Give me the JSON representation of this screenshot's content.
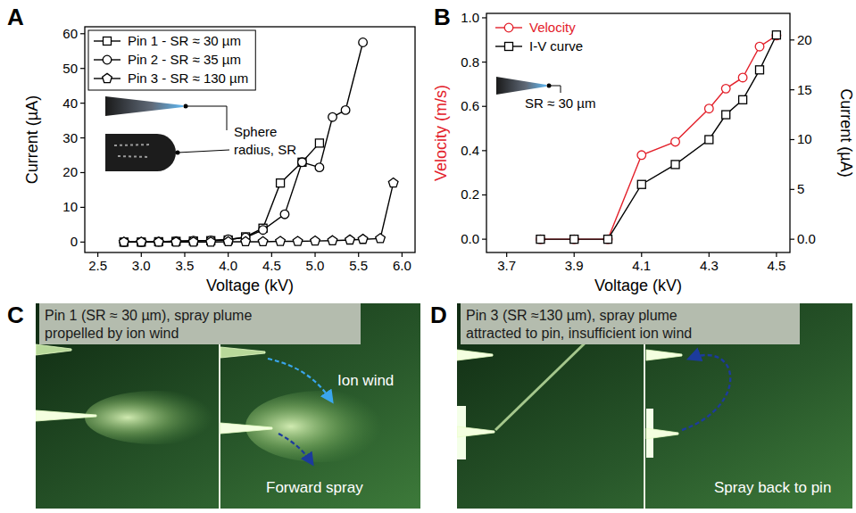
{
  "chart_data": [
    {
      "type": "line",
      "panel": "A",
      "x_label": "Voltage (kV)",
      "y_label": "Current (µA)",
      "xlim": [
        2.35,
        6.15
      ],
      "xticks": [
        2.5,
        {
          "value": 3,
          "label": "3.0"
        },
        3.5,
        {
          "value": 4,
          "label": "4.0"
        },
        4.5,
        {
          "value": 5,
          "label": "5.0"
        },
        5.5,
        {
          "value": 6,
          "label": "6.0"
        }
      ],
      "ylim": [
        -3,
        62
      ],
      "yticks": [
        0,
        10,
        20,
        30,
        40,
        50,
        60
      ],
      "grid": false,
      "legend": "upper left",
      "annotations": [
        "Sphere radius, SR"
      ],
      "series": [
        {
          "name": "Pin 1 - SR ≈ 30 µm",
          "color": "#000000",
          "marker": "square",
          "line_style": "solid",
          "x": [
            2.8,
            3.0,
            3.2,
            3.4,
            3.6,
            3.8,
            4.0,
            4.2,
            4.4,
            4.6,
            4.85,
            5.05
          ],
          "values": [
            0,
            0,
            0.1,
            0.2,
            0.3,
            0.4,
            0.6,
            1.5,
            4,
            17,
            23,
            28.5
          ]
        },
        {
          "name": "Pin 2 - SR ≈ 35 µm",
          "color": "#000000",
          "marker": "circle",
          "line_style": "solid",
          "x": [
            2.8,
            3.0,
            3.2,
            3.4,
            3.6,
            3.8,
            4.0,
            4.2,
            4.4,
            4.65,
            4.85,
            5.05,
            5.2,
            5.35,
            5.55
          ],
          "values": [
            0,
            0,
            0.1,
            0.3,
            0.4,
            0.5,
            0.8,
            1.3,
            3.5,
            8,
            23,
            21.5,
            36,
            38,
            57.5
          ]
        },
        {
          "name": "Pin 3 - SR ≈ 130 µm",
          "color": "#000000",
          "marker": "pentagon",
          "line_style": "solid",
          "x": [
            2.8,
            3.0,
            3.2,
            3.4,
            3.6,
            3.8,
            4.0,
            4.2,
            4.4,
            4.6,
            4.8,
            5.0,
            5.2,
            5.4,
            5.55,
            5.75,
            5.9
          ],
          "values": [
            0,
            0,
            0,
            0,
            0,
            0,
            0.1,
            0.1,
            0.1,
            0.2,
            0.2,
            0.3,
            0.4,
            0.6,
            0.8,
            1,
            17
          ]
        }
      ]
    },
    {
      "type": "line",
      "panel": "B",
      "x_label": "Voltage (kV)",
      "y_label": "Velocity (m/s)",
      "y2_label": "Current (µA)",
      "xlim": [
        3.64,
        4.54
      ],
      "xticks": [
        3.7,
        3.9,
        4.1,
        4.3,
        4.5
      ],
      "ylim": [
        -0.06,
        1.02
      ],
      "yticks": [
        {
          "value": 0,
          "label": "0.0"
        },
        0.2,
        0.4,
        0.6,
        0.8,
        {
          "value": 1,
          "label": "1.0"
        }
      ],
      "y2lim": [
        -1.33,
        22.67
      ],
      "y2ticks": [
        {
          "value": 0,
          "label": "0.0"
        },
        5,
        10,
        15,
        20
      ],
      "grid": false,
      "legend": "upper left",
      "annotations": [
        "SR ≈ 30 µm"
      ],
      "x": [
        3.8,
        3.9,
        4.0,
        4.1,
        4.2,
        4.3,
        4.35,
        4.4,
        4.45,
        4.5
      ],
      "series": [
        {
          "name": "Velocity",
          "color": "#e3202a",
          "marker": "circle",
          "line_style": "solid",
          "axis": "y",
          "values": [
            0,
            0,
            0,
            0.38,
            0.44,
            0.59,
            0.68,
            0.73,
            0.87,
            0.92
          ]
        },
        {
          "name": "I-V curve",
          "color": "#000000",
          "marker": "square",
          "line_style": "solid",
          "axis": "y2",
          "values": [
            0,
            0,
            0,
            5.5,
            7.5,
            10,
            12.5,
            14,
            17,
            20.5
          ]
        }
      ]
    }
  ],
  "images": [
    {
      "panel": "C",
      "caption": [
        "Pin 1 (SR ≈ 30 µm), spray plume",
        "propelled by ion wind"
      ],
      "labels": [
        "Ion wind",
        "Forward spray"
      ]
    },
    {
      "panel": "D",
      "caption": [
        "Pin 3 (SR ≈130 µm), spray plume",
        "attracted to pin, insufficient ion wind"
      ],
      "labels": [
        "Spray back to pin"
      ]
    }
  ]
}
